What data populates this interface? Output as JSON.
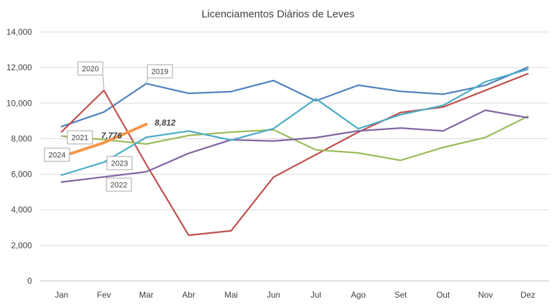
{
  "chart_data": {
    "type": "line",
    "title": "Licenciamentos Diários de Leves",
    "xlabel": "",
    "ylabel": "",
    "categories": [
      "Jan",
      "Fev",
      "Mar",
      "Abr",
      "Mai",
      "Jun",
      "Jul",
      "Ago",
      "Set",
      "Out",
      "Nov",
      "Dez"
    ],
    "ylim": [
      0,
      14000
    ],
    "yticks": [
      "0",
      "2,000",
      "4,000",
      "6,000",
      "8,000",
      "10,000",
      "12,000",
      "14,000"
    ],
    "grid": true,
    "legend": "none",
    "series": [
      {
        "name": "2019",
        "color": "#4f81bd",
        "values": [
          8680,
          9500,
          11100,
          10550,
          10650,
          11270,
          10130,
          11010,
          10660,
          10500,
          11000,
          12020
        ]
      },
      {
        "name": "2020",
        "color": "#c0504d",
        "values": [
          8380,
          10720,
          6550,
          2570,
          2820,
          5840,
          7100,
          8370,
          9470,
          9780,
          10720,
          11650
        ]
      },
      {
        "name": "2021",
        "color": "#9bbb59",
        "values": [
          8150,
          7950,
          7700,
          8180,
          8370,
          8500,
          7370,
          7200,
          6780,
          7510,
          8070,
          9260
        ]
      },
      {
        "name": "2022",
        "color": "#8064a2",
        "values": [
          5560,
          5850,
          6140,
          7180,
          7940,
          7870,
          8060,
          8440,
          8600,
          8440,
          9600,
          9180
        ]
      },
      {
        "name": "2023",
        "color": "#4bacc6",
        "values": [
          5950,
          6680,
          8080,
          8430,
          7920,
          8570,
          10240,
          8560,
          9350,
          9870,
          11200,
          11900
        ]
      },
      {
        "name": "2024",
        "color": "#f79646",
        "values": [
          6990,
          7776,
          8812,
          null,
          null,
          null,
          null,
          null,
          null,
          null,
          null,
          null
        ]
      }
    ],
    "data_labels": [
      {
        "text": "7,776",
        "series": "2024",
        "index": 1
      },
      {
        "text": "8,812",
        "series": "2024",
        "index": 2
      }
    ]
  }
}
